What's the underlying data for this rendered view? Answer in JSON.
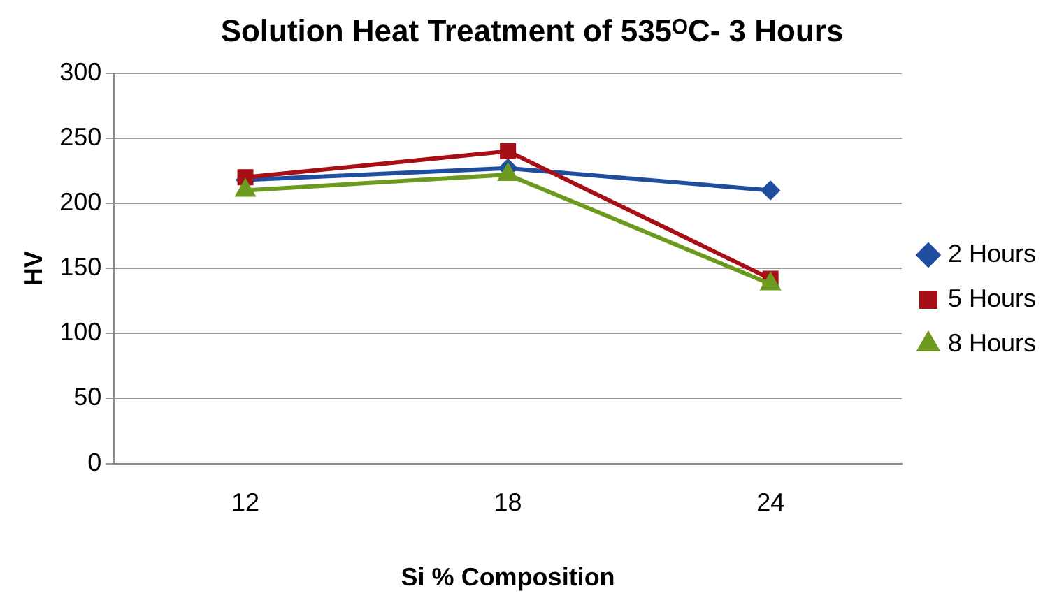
{
  "chart_data": {
    "type": "line",
    "title": "Solution Heat Treatment of 535ᴼC- 3 Hours",
    "xlabel": "Si % Composition",
    "ylabel": "HV",
    "categories": [
      "12",
      "18",
      "24"
    ],
    "series": [
      {
        "name": "2 Hours",
        "color": "#1f4e9f",
        "marker": "diamond",
        "values": [
          218,
          227,
          210
        ]
      },
      {
        "name": "5 Hours",
        "color": "#a50f15",
        "marker": "square",
        "values": [
          220,
          240,
          142
        ]
      },
      {
        "name": "8 Hours",
        "color": "#6b9a1f",
        "marker": "triangle",
        "values": [
          210,
          222,
          138
        ]
      }
    ],
    "ylim": [
      0,
      300
    ],
    "yticks": [
      0,
      50,
      100,
      150,
      200,
      250,
      300
    ],
    "grid": "y",
    "legend": "right",
    "line_style": "solid"
  }
}
